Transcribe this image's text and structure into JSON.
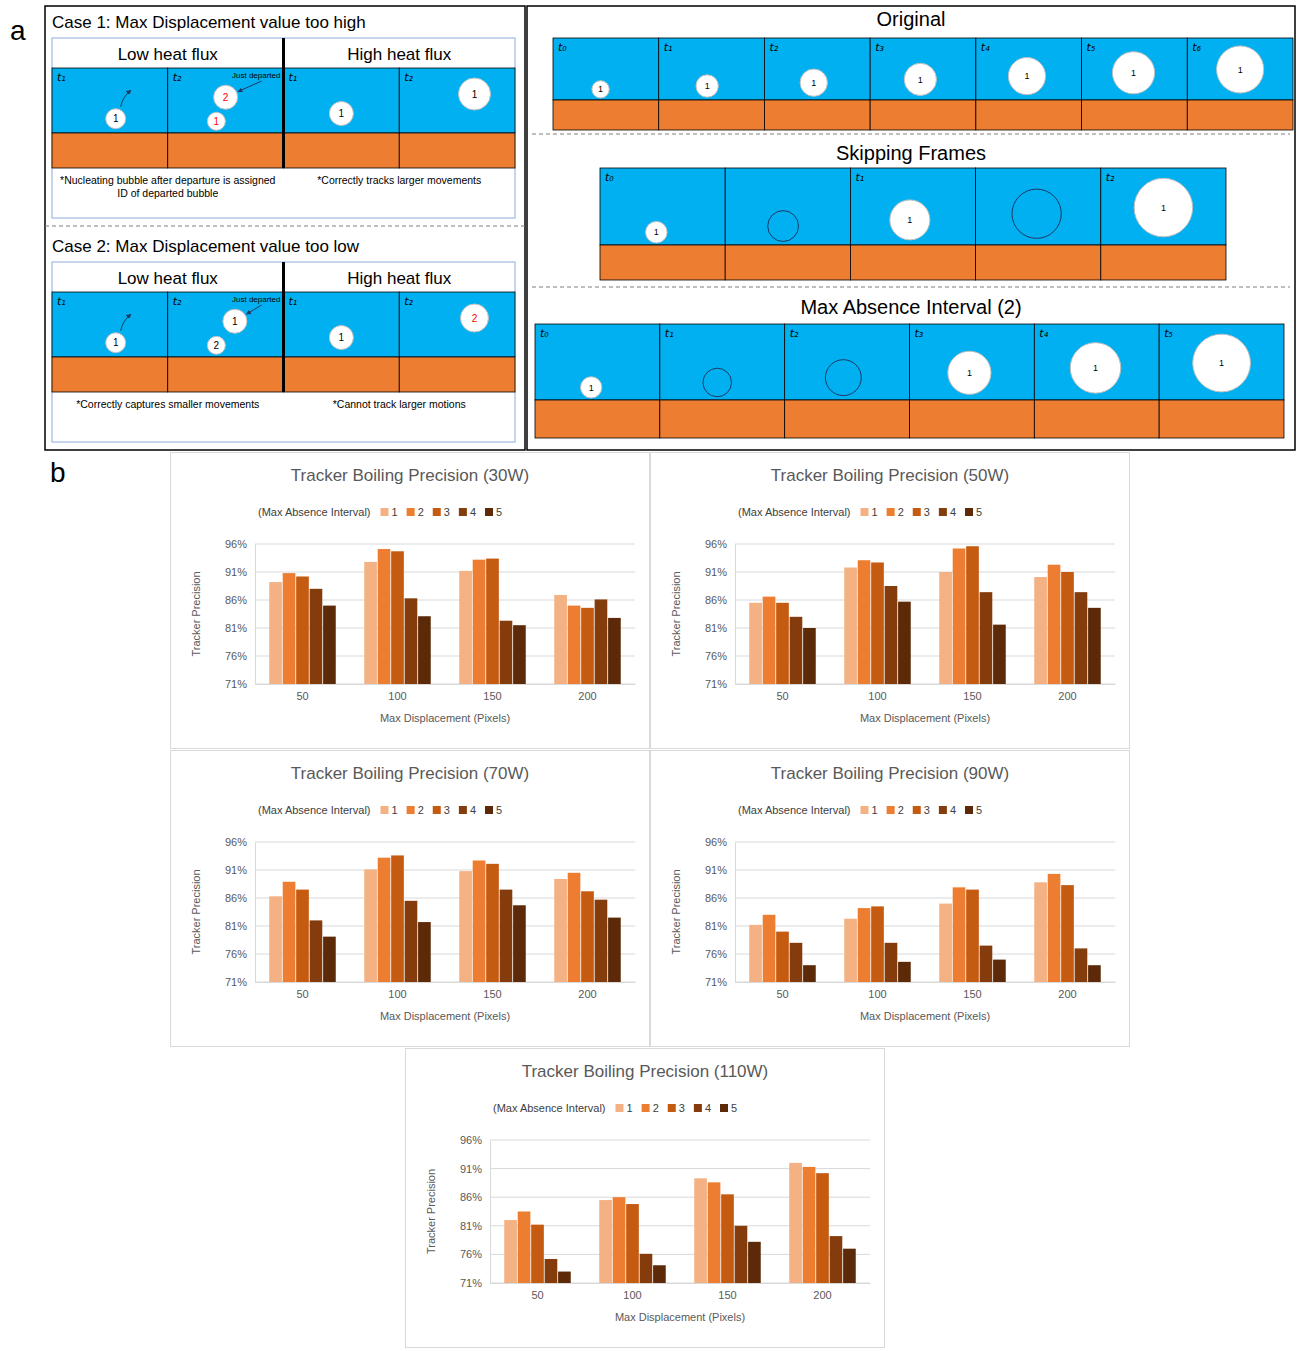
{
  "panel_a": {
    "label": "a",
    "cases": [
      {
        "title": "Case 1: Max Displacement value too high",
        "columns": [
          {
            "heading": "Low heat flux",
            "frames": [
              {
                "time": "t₁",
                "bubbles": [
                  {
                    "id": "1",
                    "highlight": false
                  }
                ]
              },
              {
                "time": "t₂",
                "note": "Just departed",
                "bubbles": [
                  {
                    "id": "2",
                    "highlight": true
                  },
                  {
                    "id": "1",
                    "highlight": true
                  }
                ]
              }
            ],
            "caption": "*Nucleating bubble after departure is assigned ID of departed bubble"
          },
          {
            "heading": "High heat flux",
            "frames": [
              {
                "time": "t₁",
                "bubbles": [
                  {
                    "id": "1",
                    "highlight": false
                  }
                ]
              },
              {
                "time": "t₂",
                "bubbles": [
                  {
                    "id": "1",
                    "highlight": false
                  }
                ]
              }
            ],
            "caption": "*Correctly tracks larger movements"
          }
        ]
      },
      {
        "title": "Case 2: Max Displacement value too low",
        "columns": [
          {
            "heading": "Low heat flux",
            "frames": [
              {
                "time": "t₁",
                "bubbles": [
                  {
                    "id": "1",
                    "highlight": false
                  }
                ]
              },
              {
                "time": "t₂",
                "note": "Just departed",
                "bubbles": [
                  {
                    "id": "1",
                    "highlight": false
                  },
                  {
                    "id": "2",
                    "highlight": false
                  }
                ]
              }
            ],
            "caption": "*Correctly captures smaller movements"
          },
          {
            "heading": "High heat flux",
            "frames": [
              {
                "time": "t₁",
                "bubbles": [
                  {
                    "id": "1",
                    "highlight": false
                  }
                ]
              },
              {
                "time": "t₂",
                "bubbles": [
                  {
                    "id": "2",
                    "highlight": true
                  }
                ]
              }
            ],
            "caption": "*Cannot track larger motions"
          }
        ]
      }
    ],
    "sequences": [
      {
        "title": "Original",
        "frames": [
          {
            "time": "t₀",
            "bubble": "1"
          },
          {
            "time": "t₁",
            "bubble": "1"
          },
          {
            "time": "t₂",
            "bubble": "1"
          },
          {
            "time": "t₃",
            "bubble": "1"
          },
          {
            "time": "t₄",
            "bubble": "1"
          },
          {
            "time": "t₅",
            "bubble": "1"
          },
          {
            "time": "t₆",
            "bubble": "1"
          }
        ]
      },
      {
        "title": "Skipping Frames",
        "frames": [
          {
            "time": "t₀",
            "bubble": "1"
          },
          {
            "time": null,
            "bubble": null
          },
          {
            "time": "t₁",
            "bubble": "1"
          },
          {
            "time": null,
            "bubble": null
          },
          {
            "time": "t₂",
            "bubble": "1"
          }
        ]
      },
      {
        "title": "Max Absence Interval (2)",
        "frames": [
          {
            "time": "t₀",
            "bubble": "1"
          },
          {
            "time": "t₁",
            "bubble": null
          },
          {
            "time": "t₂",
            "bubble": null
          },
          {
            "time": "t₃",
            "bubble": "1"
          },
          {
            "time": "t₄",
            "bubble": "1"
          },
          {
            "time": "t₅",
            "bubble": "1"
          }
        ]
      }
    ]
  },
  "panel_b": {
    "label": "b"
  },
  "chart_data": [
    {
      "type": "bar",
      "title": "Tracker Boiling Precision (30W)",
      "x_label": "Max Displacement (Pixels)",
      "y_label": "Tracker Precision",
      "legend_title": "(Max Absence Interval)",
      "legend": "top",
      "grid": true,
      "categories": [
        "50",
        "100",
        "150",
        "200"
      ],
      "ylim": [
        71,
        96
      ],
      "yticks": [
        {
          "value": 71,
          "label": "71%"
        },
        {
          "value": 76,
          "label": "76%"
        },
        {
          "value": 81,
          "label": "81%"
        },
        {
          "value": 86,
          "label": "86%"
        },
        {
          "value": 91,
          "label": "91%"
        },
        {
          "value": 96,
          "label": "96%"
        }
      ],
      "series": [
        {
          "name": "1",
          "color": "#f4b183",
          "values": [
            89.2,
            92.8,
            91.2,
            86.9
          ]
        },
        {
          "name": "2",
          "color": "#ed7d31",
          "values": [
            90.8,
            95.1,
            93.2,
            85.0
          ]
        },
        {
          "name": "3",
          "color": "#c55a11",
          "values": [
            90.2,
            94.7,
            93.4,
            84.6
          ]
        },
        {
          "name": "4",
          "color": "#843c0c",
          "values": [
            88.0,
            86.3,
            82.3,
            86.1
          ]
        },
        {
          "name": "5",
          "color": "#5c2a08",
          "values": [
            85.0,
            83.1,
            81.5,
            82.8
          ]
        }
      ]
    },
    {
      "type": "bar",
      "title": "Tracker Boiling Precision (50W)",
      "x_label": "Max Displacement (Pixels)",
      "y_label": "Tracker Precision",
      "legend_title": "(Max Absence Interval)",
      "legend": "top",
      "grid": true,
      "categories": [
        "50",
        "100",
        "150",
        "200"
      ],
      "ylim": [
        71,
        96
      ],
      "yticks": [
        {
          "value": 71,
          "label": "71%"
        },
        {
          "value": 76,
          "label": "76%"
        },
        {
          "value": 81,
          "label": "81%"
        },
        {
          "value": 86,
          "label": "86%"
        },
        {
          "value": 91,
          "label": "91%"
        },
        {
          "value": 96,
          "label": "96%"
        }
      ],
      "series": [
        {
          "name": "1",
          "color": "#f4b183",
          "values": [
            85.5,
            91.8,
            91.0,
            90.1
          ]
        },
        {
          "name": "2",
          "color": "#ed7d31",
          "values": [
            86.6,
            93.1,
            95.2,
            92.3
          ]
        },
        {
          "name": "3",
          "color": "#c55a11",
          "values": [
            85.5,
            92.7,
            95.6,
            91.0
          ]
        },
        {
          "name": "4",
          "color": "#843c0c",
          "values": [
            83.0,
            88.5,
            87.4,
            87.4
          ]
        },
        {
          "name": "5",
          "color": "#5c2a08",
          "values": [
            81.0,
            85.7,
            81.6,
            84.6
          ]
        }
      ]
    },
    {
      "type": "bar",
      "title": "Tracker Boiling Precision (70W)",
      "x_label": "Max Displacement (Pixels)",
      "y_label": "Tracker Precision",
      "legend_title": "(Max Absence Interval)",
      "legend": "top",
      "grid": true,
      "categories": [
        "50",
        "100",
        "150",
        "200"
      ],
      "ylim": [
        71,
        96
      ],
      "yticks": [
        {
          "value": 71,
          "label": "71%"
        },
        {
          "value": 76,
          "label": "76%"
        },
        {
          "value": 81,
          "label": "81%"
        },
        {
          "value": 86,
          "label": "86%"
        },
        {
          "value": 91,
          "label": "91%"
        },
        {
          "value": 96,
          "label": "96%"
        }
      ],
      "series": [
        {
          "name": "1",
          "color": "#f4b183",
          "values": [
            86.3,
            91.1,
            90.8,
            89.4
          ]
        },
        {
          "name": "2",
          "color": "#ed7d31",
          "values": [
            88.9,
            93.2,
            92.7,
            90.5
          ]
        },
        {
          "name": "3",
          "color": "#c55a11",
          "values": [
            87.5,
            93.6,
            92.1,
            87.2
          ]
        },
        {
          "name": "4",
          "color": "#843c0c",
          "values": [
            82.0,
            85.5,
            87.5,
            85.7
          ]
        },
        {
          "name": "5",
          "color": "#5c2a08",
          "values": [
            79.1,
            81.7,
            84.7,
            82.5
          ]
        }
      ]
    },
    {
      "type": "bar",
      "title": "Tracker Boiling Precision (90W)",
      "x_label": "Max Displacement (Pixels)",
      "y_label": "Tracker Precision",
      "legend_title": "(Max Absence Interval)",
      "legend": "top",
      "grid": true,
      "categories": [
        "50",
        "100",
        "150",
        "200"
      ],
      "ylim": [
        71,
        96
      ],
      "yticks": [
        {
          "value": 71,
          "label": "71%"
        },
        {
          "value": 76,
          "label": "76%"
        },
        {
          "value": 81,
          "label": "81%"
        },
        {
          "value": 86,
          "label": "86%"
        },
        {
          "value": 91,
          "label": "91%"
        },
        {
          "value": 96,
          "label": "96%"
        }
      ],
      "series": [
        {
          "name": "1",
          "color": "#f4b183",
          "values": [
            81.2,
            82.3,
            85.0,
            88.8
          ]
        },
        {
          "name": "2",
          "color": "#ed7d31",
          "values": [
            83.0,
            84.2,
            87.9,
            90.3
          ]
        },
        {
          "name": "3",
          "color": "#c55a11",
          "values": [
            80.0,
            84.5,
            87.5,
            88.3
          ]
        },
        {
          "name": "4",
          "color": "#843c0c",
          "values": [
            78.0,
            78.0,
            77.5,
            77.0
          ]
        },
        {
          "name": "5",
          "color": "#5c2a08",
          "values": [
            74.0,
            74.6,
            75.0,
            74.0
          ]
        }
      ]
    },
    {
      "type": "bar",
      "title": "Tracker Boiling Precision (110W)",
      "x_label": "Max Displacement (Pixels)",
      "y_label": "Tracker Precision",
      "legend_title": "(Max Absence Interval)",
      "legend": "top",
      "grid": true,
      "categories": [
        "50",
        "100",
        "150",
        "200"
      ],
      "ylim": [
        71,
        96
      ],
      "yticks": [
        {
          "value": 71,
          "label": "71%"
        },
        {
          "value": 76,
          "label": "76%"
        },
        {
          "value": 81,
          "label": "81%"
        },
        {
          "value": 86,
          "label": "86%"
        },
        {
          "value": 91,
          "label": "91%"
        },
        {
          "value": 96,
          "label": "96%"
        }
      ],
      "series": [
        {
          "name": "1",
          "color": "#f4b183",
          "values": [
            82.0,
            85.5,
            89.3,
            92.0
          ]
        },
        {
          "name": "2",
          "color": "#ed7d31",
          "values": [
            83.5,
            86.0,
            88.6,
            91.3
          ]
        },
        {
          "name": "3",
          "color": "#c55a11",
          "values": [
            81.2,
            84.8,
            86.5,
            90.2
          ]
        },
        {
          "name": "4",
          "color": "#843c0c",
          "values": [
            75.2,
            76.1,
            81.0,
            79.2
          ]
        },
        {
          "name": "5",
          "color": "#5c2a08",
          "values": [
            73.0,
            74.1,
            78.2,
            77.0
          ]
        }
      ]
    }
  ]
}
